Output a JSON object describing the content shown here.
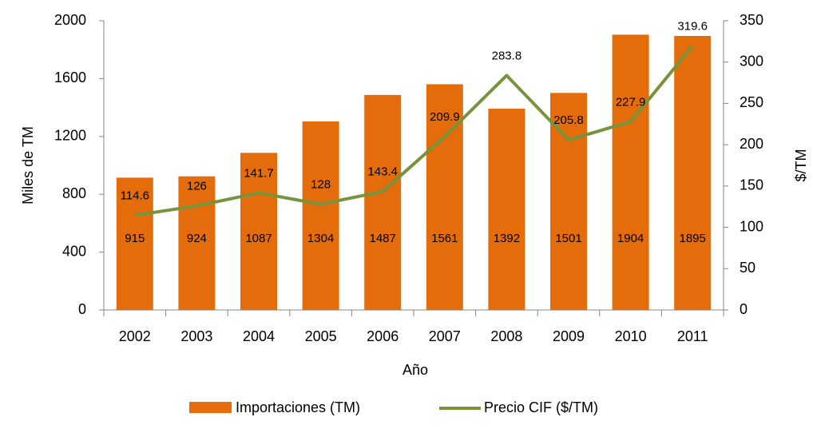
{
  "chart_data": {
    "type": "bar-line",
    "x_label": "Año",
    "y_label": "Miles de TM",
    "y2_label": "$/TM",
    "categories": [
      "2002",
      "2003",
      "2004",
      "2005",
      "2006",
      "2007",
      "2008",
      "2009",
      "2010",
      "2011"
    ],
    "series": [
      {
        "name": "Importaciones (TM)",
        "type": "bar",
        "color": "#e46c0a",
        "values": [
          915,
          924,
          1087,
          1304,
          1487,
          1561,
          1392,
          1501,
          1904,
          1895
        ]
      },
      {
        "name": "Precio CIF ($/TM)",
        "type": "line",
        "axis": "y2",
        "color": "#77933c",
        "values": [
          114.6,
          126,
          141.7,
          128,
          143.4,
          209.9,
          283.8,
          205.8,
          227.9,
          319.6
        ]
      }
    ],
    "ylim": [
      0,
      2000
    ],
    "yticks": [
      0,
      400,
      800,
      1200,
      1600,
      2000
    ],
    "y2lim": [
      0,
      350
    ],
    "y2ticks": [
      0,
      50,
      100,
      150,
      200,
      250,
      300,
      350
    ],
    "grid": false,
    "legend": "bottom"
  }
}
